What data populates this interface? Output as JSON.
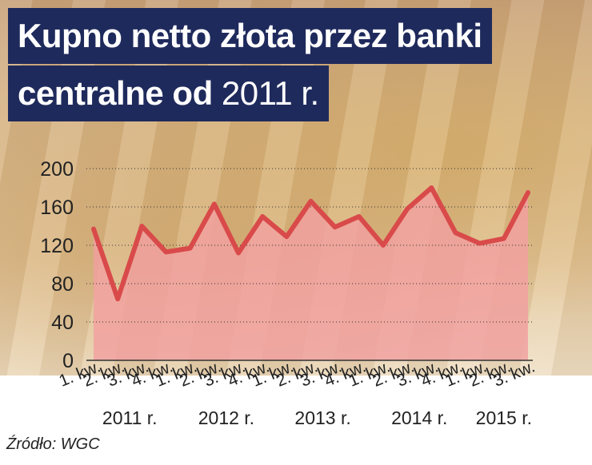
{
  "title": {
    "line1": "Kupno netto złota przez banki",
    "line2_main": "centralne od ",
    "line2_year": "2011 r."
  },
  "source": "Źródło: WGC",
  "colors": {
    "title_bg": "#1f2a5c",
    "line": "#d94a4a",
    "area": "#f1a0a0"
  },
  "chart_data": {
    "type": "area",
    "x": [
      "1. kw.",
      "2. kw.",
      "3. kw.",
      "4. kw.",
      "1. kw.",
      "2. kw.",
      "3. kw.",
      "4. kw.",
      "1. kw.",
      "2. kw.",
      "3. kw.",
      "4. kw.",
      "1. kw.",
      "2. kw.",
      "3. kw.",
      "4. kw.",
      "1. kw.",
      "2. kw.",
      "3. kw."
    ],
    "years": [
      {
        "label": "2011 r.",
        "start": 0,
        "end": 3
      },
      {
        "label": "2012 r.",
        "start": 4,
        "end": 7
      },
      {
        "label": "2013 r.",
        "start": 8,
        "end": 11
      },
      {
        "label": "2014 r.",
        "start": 12,
        "end": 15
      },
      {
        "label": "2015 r.",
        "start": 16,
        "end": 18
      }
    ],
    "series": [
      {
        "values": [
          137,
          64,
          140,
          113,
          117,
          163,
          112,
          150,
          129,
          166,
          139,
          150,
          120,
          158,
          180,
          133,
          122,
          127,
          175
        ]
      }
    ],
    "ylim": [
      0,
      200
    ],
    "yticks": [
      0,
      40,
      80,
      120,
      160,
      200
    ],
    "grid": true
  }
}
